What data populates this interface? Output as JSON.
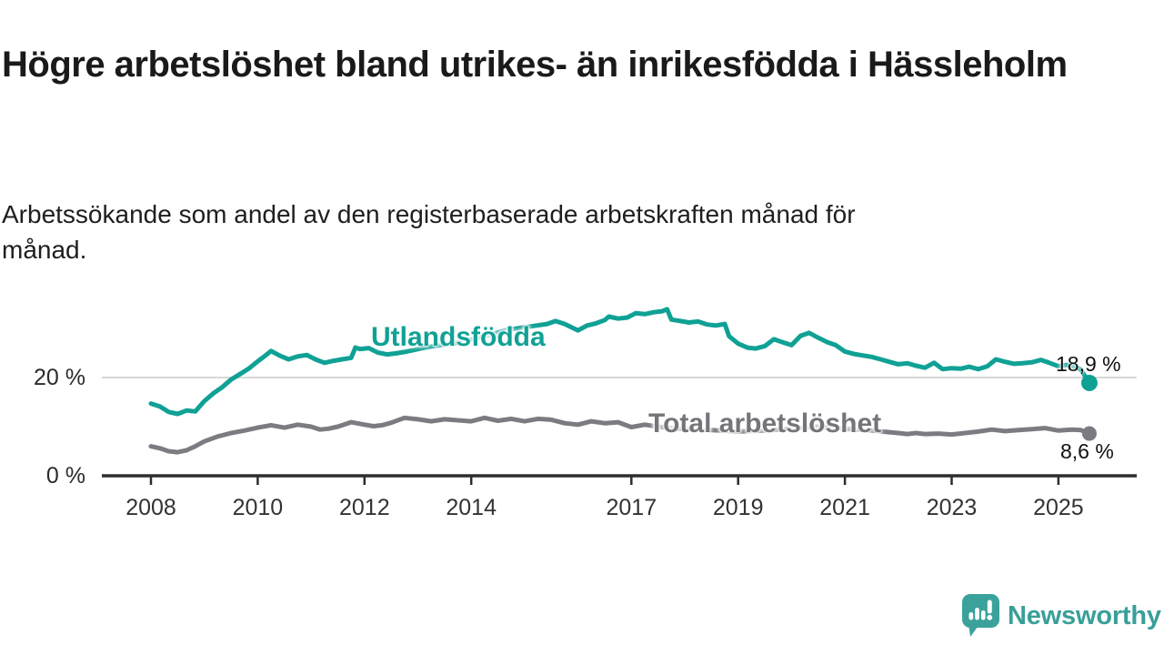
{
  "header": {
    "title": "Högre arbetslöshet bland utrikes- än inrikesfödda i Hässleholm",
    "subtitle": "Arbetssökande som andel av den registerbaserade arbetskraften månad för månad."
  },
  "branding": {
    "logo_text": "Newsworthy",
    "logo_icon": "speech-bubble-bar-chart-exclamation",
    "brand_color": "#3aa29b"
  },
  "chart_data": {
    "type": "line",
    "title": "Högre arbetslöshet bland utrikes- än inrikesfödda i Hässleholm",
    "subtitle": "Arbetssökande som andel av den registerbaserade arbetskraften månad för månad.",
    "unit": "%",
    "grid": "horizontal-only",
    "legend_position": "inline-labels",
    "x_axis": {
      "ticks": [
        2008,
        2010,
        2012,
        2014,
        2017,
        2019,
        2021,
        2023,
        2025
      ],
      "range": [
        2007.9,
        2026.4
      ]
    },
    "y_axis": {
      "ticks": [
        {
          "value": 0,
          "label": "0 %"
        },
        {
          "value": 20,
          "label": "20 %"
        }
      ],
      "range": [
        0,
        36
      ],
      "gridlines": [
        20
      ]
    },
    "colors": {
      "axis": "#2d2d2d",
      "gridline": "#d8d8d8",
      "tick_label": "#333333"
    },
    "series": [
      {
        "name": "Utlandsfödda",
        "color": "#10a195",
        "end_label": "18,9 %",
        "end_value": 18.9,
        "points": [
          [
            2008.0,
            14.7
          ],
          [
            2008.17,
            14.1
          ],
          [
            2008.33,
            13.0
          ],
          [
            2008.5,
            12.6
          ],
          [
            2008.67,
            13.3
          ],
          [
            2008.83,
            13.1
          ],
          [
            2009.0,
            15.2
          ],
          [
            2009.17,
            16.8
          ],
          [
            2009.33,
            18.0
          ],
          [
            2009.5,
            19.6
          ],
          [
            2009.67,
            20.7
          ],
          [
            2009.83,
            21.8
          ],
          [
            2010.0,
            23.3
          ],
          [
            2010.17,
            24.7
          ],
          [
            2010.25,
            25.4
          ],
          [
            2010.42,
            24.4
          ],
          [
            2010.58,
            23.7
          ],
          [
            2010.75,
            24.3
          ],
          [
            2010.92,
            24.6
          ],
          [
            2011.08,
            23.7
          ],
          [
            2011.25,
            23.0
          ],
          [
            2011.42,
            23.4
          ],
          [
            2011.58,
            23.7
          ],
          [
            2011.75,
            24.0
          ],
          [
            2011.83,
            26.1
          ],
          [
            2011.92,
            25.8
          ],
          [
            2012.08,
            26.0
          ],
          [
            2012.25,
            25.1
          ],
          [
            2012.42,
            24.7
          ],
          [
            2012.58,
            24.9
          ],
          [
            2012.75,
            25.2
          ],
          [
            2012.92,
            25.6
          ],
          [
            2013.17,
            26.2
          ],
          [
            2013.42,
            26.6
          ],
          [
            2013.67,
            26.9
          ],
          [
            2013.92,
            27.5
          ],
          [
            2014.17,
            28.2
          ],
          [
            2014.42,
            28.9
          ],
          [
            2014.67,
            29.7
          ],
          [
            2014.92,
            30.1
          ],
          [
            2015.17,
            30.5
          ],
          [
            2015.42,
            30.9
          ],
          [
            2015.58,
            31.5
          ],
          [
            2015.75,
            30.9
          ],
          [
            2016.0,
            29.6
          ],
          [
            2016.17,
            30.6
          ],
          [
            2016.33,
            31.0
          ],
          [
            2016.5,
            31.7
          ],
          [
            2016.58,
            32.4
          ],
          [
            2016.75,
            32.0
          ],
          [
            2016.92,
            32.2
          ],
          [
            2017.08,
            33.1
          ],
          [
            2017.25,
            32.9
          ],
          [
            2017.42,
            33.3
          ],
          [
            2017.58,
            33.5
          ],
          [
            2017.67,
            33.9
          ],
          [
            2017.75,
            31.8
          ],
          [
            2017.92,
            31.5
          ],
          [
            2018.08,
            31.2
          ],
          [
            2018.25,
            31.4
          ],
          [
            2018.42,
            30.8
          ],
          [
            2018.58,
            30.6
          ],
          [
            2018.75,
            30.9
          ],
          [
            2018.83,
            28.4
          ],
          [
            2019.0,
            26.9
          ],
          [
            2019.17,
            26.1
          ],
          [
            2019.33,
            25.9
          ],
          [
            2019.5,
            26.4
          ],
          [
            2019.67,
            27.8
          ],
          [
            2019.83,
            27.2
          ],
          [
            2020.0,
            26.6
          ],
          [
            2020.17,
            28.5
          ],
          [
            2020.33,
            29.1
          ],
          [
            2020.5,
            28.1
          ],
          [
            2020.67,
            27.2
          ],
          [
            2020.83,
            26.6
          ],
          [
            2021.0,
            25.3
          ],
          [
            2021.17,
            24.8
          ],
          [
            2021.33,
            24.5
          ],
          [
            2021.5,
            24.2
          ],
          [
            2021.67,
            23.7
          ],
          [
            2021.83,
            23.2
          ],
          [
            2022.0,
            22.7
          ],
          [
            2022.17,
            22.9
          ],
          [
            2022.33,
            22.4
          ],
          [
            2022.5,
            22.0
          ],
          [
            2022.67,
            23.0
          ],
          [
            2022.83,
            21.7
          ],
          [
            2023.0,
            21.9
          ],
          [
            2023.17,
            21.8
          ],
          [
            2023.33,
            22.2
          ],
          [
            2023.5,
            21.7
          ],
          [
            2023.67,
            22.3
          ],
          [
            2023.83,
            23.7
          ],
          [
            2024.0,
            23.2
          ],
          [
            2024.17,
            22.8
          ],
          [
            2024.33,
            22.9
          ],
          [
            2024.5,
            23.1
          ],
          [
            2024.67,
            23.6
          ],
          [
            2024.83,
            23.0
          ],
          [
            2025.0,
            22.3
          ],
          [
            2025.17,
            22.6
          ],
          [
            2025.33,
            22.1
          ],
          [
            2025.42,
            21.6
          ],
          [
            2025.58,
            18.9
          ]
        ]
      },
      {
        "name": "Total arbetslöshet",
        "color": "#7b7b81",
        "end_label": "8,6 %",
        "end_value": 8.6,
        "points": [
          [
            2008.0,
            6.0
          ],
          [
            2008.17,
            5.6
          ],
          [
            2008.33,
            5.0
          ],
          [
            2008.5,
            4.8
          ],
          [
            2008.67,
            5.2
          ],
          [
            2008.83,
            6.0
          ],
          [
            2009.0,
            7.0
          ],
          [
            2009.25,
            8.0
          ],
          [
            2009.5,
            8.7
          ],
          [
            2009.75,
            9.2
          ],
          [
            2010.0,
            9.8
          ],
          [
            2010.25,
            10.3
          ],
          [
            2010.5,
            9.8
          ],
          [
            2010.75,
            10.4
          ],
          [
            2011.0,
            10.0
          ],
          [
            2011.17,
            9.4
          ],
          [
            2011.33,
            9.6
          ],
          [
            2011.5,
            10.0
          ],
          [
            2011.75,
            10.9
          ],
          [
            2012.0,
            10.4
          ],
          [
            2012.17,
            10.1
          ],
          [
            2012.33,
            10.3
          ],
          [
            2012.5,
            10.8
          ],
          [
            2012.75,
            11.8
          ],
          [
            2013.0,
            11.5
          ],
          [
            2013.25,
            11.1
          ],
          [
            2013.5,
            11.5
          ],
          [
            2013.75,
            11.3
          ],
          [
            2014.0,
            11.1
          ],
          [
            2014.25,
            11.8
          ],
          [
            2014.5,
            11.2
          ],
          [
            2014.75,
            11.6
          ],
          [
            2015.0,
            11.1
          ],
          [
            2015.25,
            11.6
          ],
          [
            2015.5,
            11.4
          ],
          [
            2015.75,
            10.7
          ],
          [
            2016.0,
            10.4
          ],
          [
            2016.25,
            11.1
          ],
          [
            2016.5,
            10.7
          ],
          [
            2016.75,
            10.9
          ],
          [
            2017.0,
            9.9
          ],
          [
            2017.25,
            10.4
          ],
          [
            2017.5,
            10.0
          ],
          [
            2017.75,
            9.7
          ],
          [
            2018.0,
            9.5
          ],
          [
            2018.5,
            9.3
          ],
          [
            2019.0,
            9.0
          ],
          [
            2019.5,
            9.2
          ],
          [
            2020.0,
            9.6
          ],
          [
            2020.5,
            10.0
          ],
          [
            2021.0,
            9.6
          ],
          [
            2021.5,
            9.2
          ],
          [
            2022.0,
            8.7
          ],
          [
            2022.17,
            8.5
          ],
          [
            2022.33,
            8.7
          ],
          [
            2022.5,
            8.5
          ],
          [
            2022.75,
            8.6
          ],
          [
            2023.0,
            8.4
          ],
          [
            2023.25,
            8.7
          ],
          [
            2023.5,
            9.0
          ],
          [
            2023.75,
            9.4
          ],
          [
            2024.0,
            9.1
          ],
          [
            2024.25,
            9.3
          ],
          [
            2024.5,
            9.5
          ],
          [
            2024.75,
            9.7
          ],
          [
            2025.0,
            9.2
          ],
          [
            2025.25,
            9.4
          ],
          [
            2025.42,
            9.3
          ],
          [
            2025.58,
            8.6
          ]
        ]
      }
    ]
  }
}
